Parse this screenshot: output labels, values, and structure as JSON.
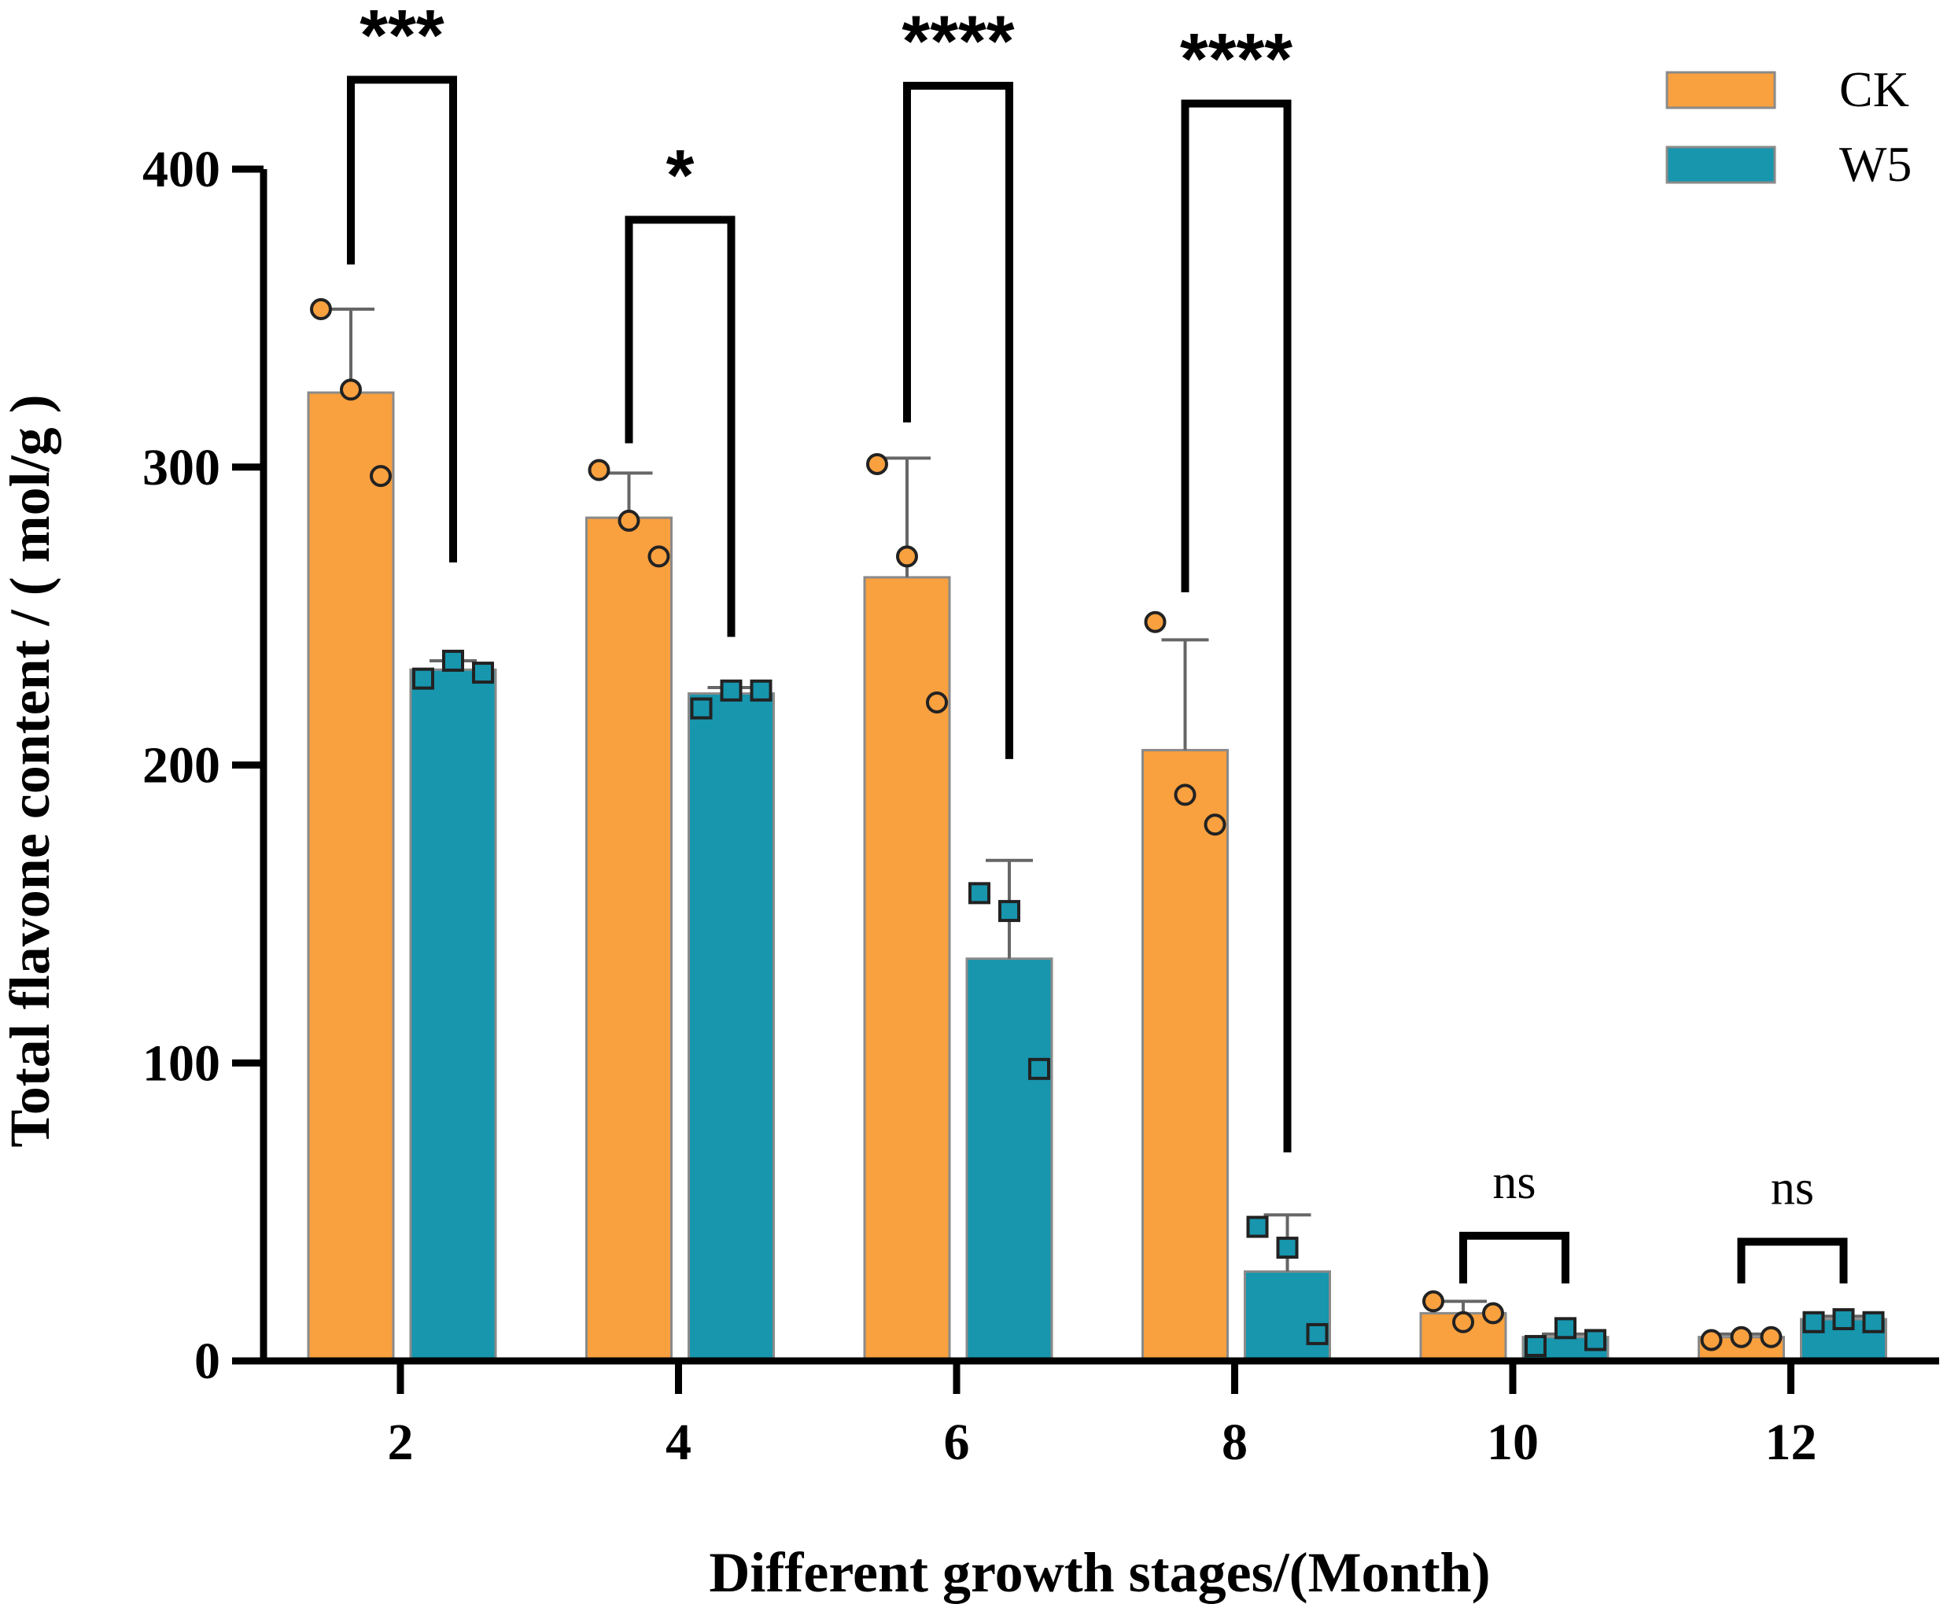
{
  "chart_data": {
    "type": "bar",
    "title": "",
    "xlabel": "Different growth stages/(Month)",
    "ylabel": "Total flavone content / ( mol/g )",
    "ylim": [
      0,
      400
    ],
    "yticks": [
      0,
      100,
      200,
      300,
      400
    ],
    "categories": [
      "2",
      "4",
      "6",
      "8",
      "10",
      "12"
    ],
    "legend_position": "top-right",
    "series": [
      {
        "name": "CK",
        "color": "#F9A03F",
        "marker": "circle",
        "values": [
          325,
          283,
          263,
          205,
          16,
          8
        ],
        "error": [
          28,
          15,
          40,
          37,
          4,
          1
        ],
        "points": [
          [
            353,
            326,
            297
          ],
          [
            299,
            282,
            270
          ],
          [
            301,
            270,
            221
          ],
          [
            248,
            190,
            180
          ],
          [
            20,
            13,
            16
          ],
          [
            7,
            8,
            8
          ]
        ]
      },
      {
        "name": "W5",
        "color": "#1796AE",
        "marker": "square",
        "values": [
          232,
          224,
          135,
          30,
          8,
          14
        ],
        "error": [
          3,
          2,
          33,
          19,
          1,
          1
        ],
        "points": [
          [
            229,
            235,
            231
          ],
          [
            219,
            225,
            225
          ],
          [
            157,
            151,
            98
          ],
          [
            45,
            38,
            9
          ],
          [
            5,
            11,
            7
          ],
          [
            13,
            14,
            13
          ]
        ]
      }
    ],
    "significance": [
      {
        "label": "***",
        "bar_index": 0,
        "left_y": 368,
        "right_y": 268,
        "top_y": 430
      },
      {
        "label": "*",
        "bar_index": 1,
        "left_y": 308,
        "right_y": 243,
        "top_y": 383
      },
      {
        "label": "****",
        "bar_index": 2,
        "left_y": 315,
        "right_y": 202,
        "top_y": 428
      },
      {
        "label": "****",
        "bar_index": 3,
        "left_y": 258,
        "right_y": 70,
        "top_y": 422
      },
      {
        "label": "ns",
        "bar_index": 4,
        "left_y": 26,
        "right_y": 26,
        "top_y": 42
      },
      {
        "label": "ns",
        "bar_index": 5,
        "left_y": 26,
        "right_y": 26,
        "top_y": 40
      }
    ]
  }
}
